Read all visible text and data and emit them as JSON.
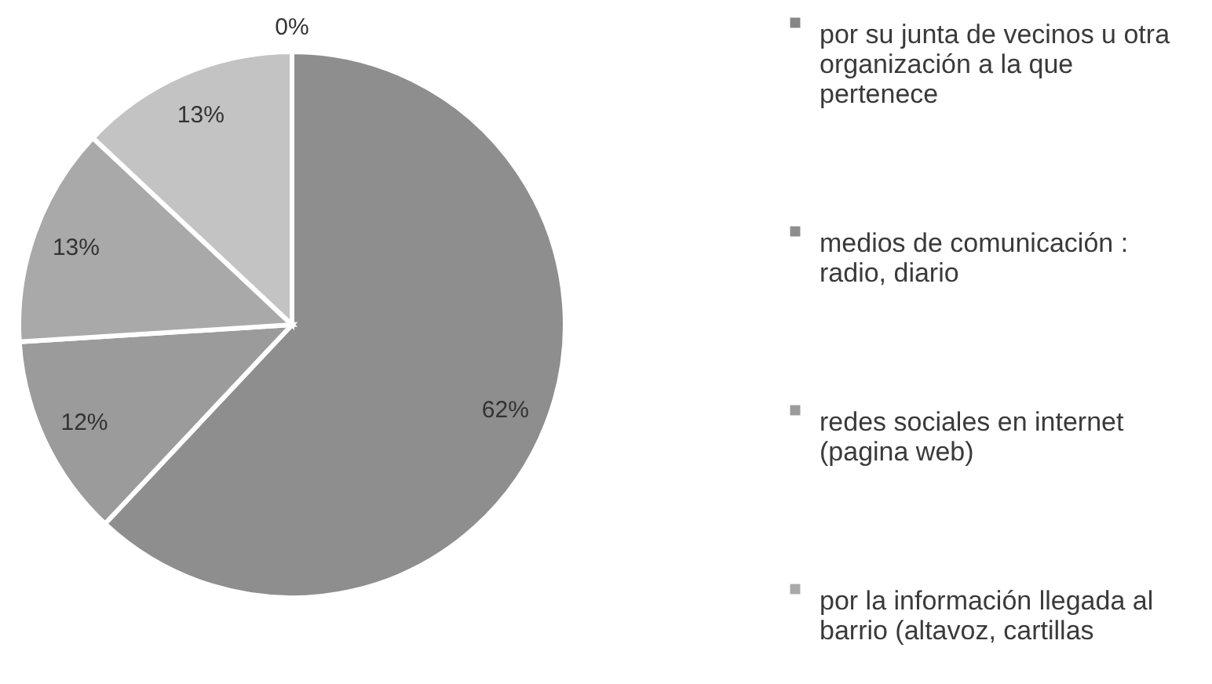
{
  "chart_data": {
    "type": "pie",
    "categories": [
      "por su junta de vecinos u otra organización a la que pertenece",
      "medios de comunicación : radio, diario",
      "redes sociales en internet (pagina web)",
      "por la información llegada al barrio (altavoz, cartillas",
      null
    ],
    "values": [
      0,
      62,
      12,
      13,
      13
    ],
    "value_labels": [
      "0%",
      "62%",
      "12%",
      "13%",
      "13%"
    ],
    "colors": [
      "#858585",
      "#8e8e8e",
      "#9b9b9b",
      "#a9a9a9",
      "#c3c3c3"
    ],
    "legend": "right"
  }
}
